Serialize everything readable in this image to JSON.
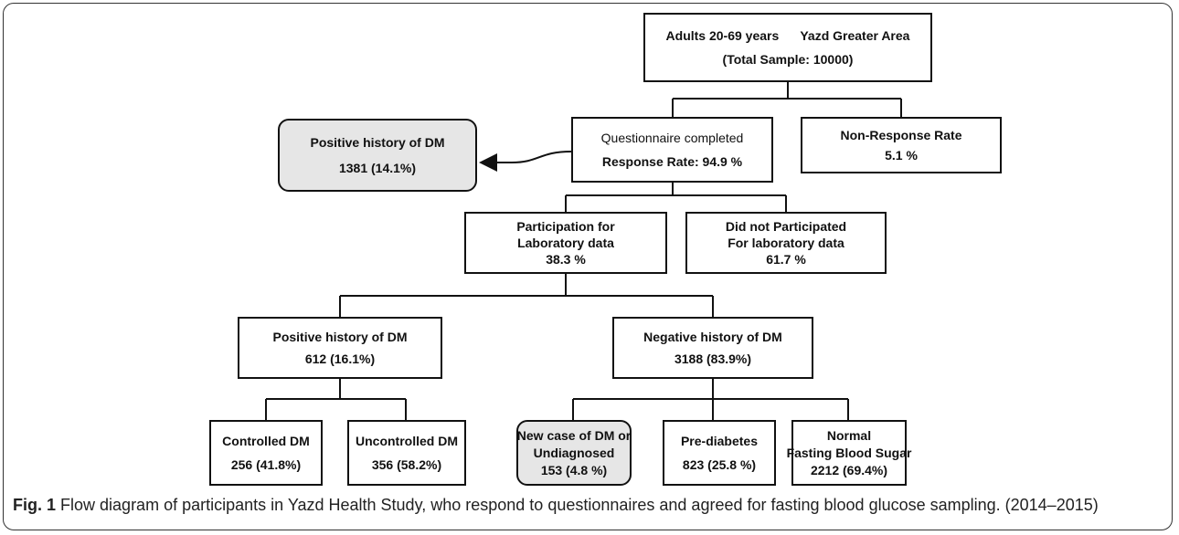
{
  "nodes": [
    {
      "lines": [
        "Adults 20-69 years      Yazd Greater Area",
        "(Total Sample: 10000)"
      ]
    },
    {
      "lines": [
        "Questionnaire completed",
        "Response Rate: 94.9 %"
      ]
    },
    {
      "lines": [
        "Non-Response Rate",
        "5.1 %"
      ]
    },
    {
      "lines": [
        "Positive history of DM",
        "1381 (14.1%)"
      ]
    },
    {
      "lines": [
        "Participation for",
        "Laboratory data",
        "38.3 %"
      ]
    },
    {
      "lines": [
        "Did not Participated",
        "For laboratory data",
        "61.7 %"
      ]
    },
    {
      "lines": [
        "Positive history of DM",
        "612 (16.1%)"
      ]
    },
    {
      "lines": [
        "Negative history of DM",
        "3188 (83.9%)"
      ]
    },
    {
      "lines": [
        "Controlled DM",
        "256 (41.8%)"
      ]
    },
    {
      "lines": [
        "Uncontrolled DM",
        "356 (58.2%)"
      ]
    },
    {
      "lines": [
        "New case of DM or",
        "Undiagnosed",
        "153 (4.8 %)"
      ]
    },
    {
      "lines": [
        "Pre-diabetes",
        "823 (25.8 %)"
      ]
    },
    {
      "lines": [
        "Normal",
        "Fasting Blood Sugar",
        "2212 (69.4%)"
      ]
    }
  ],
  "caption": {
    "label": "Fig. 1",
    "text": "Flow diagram of participants in Yazd Health Study, who respond to questionnaires and agreed for fasting blood glucose sampling. (2014–2015)"
  }
}
